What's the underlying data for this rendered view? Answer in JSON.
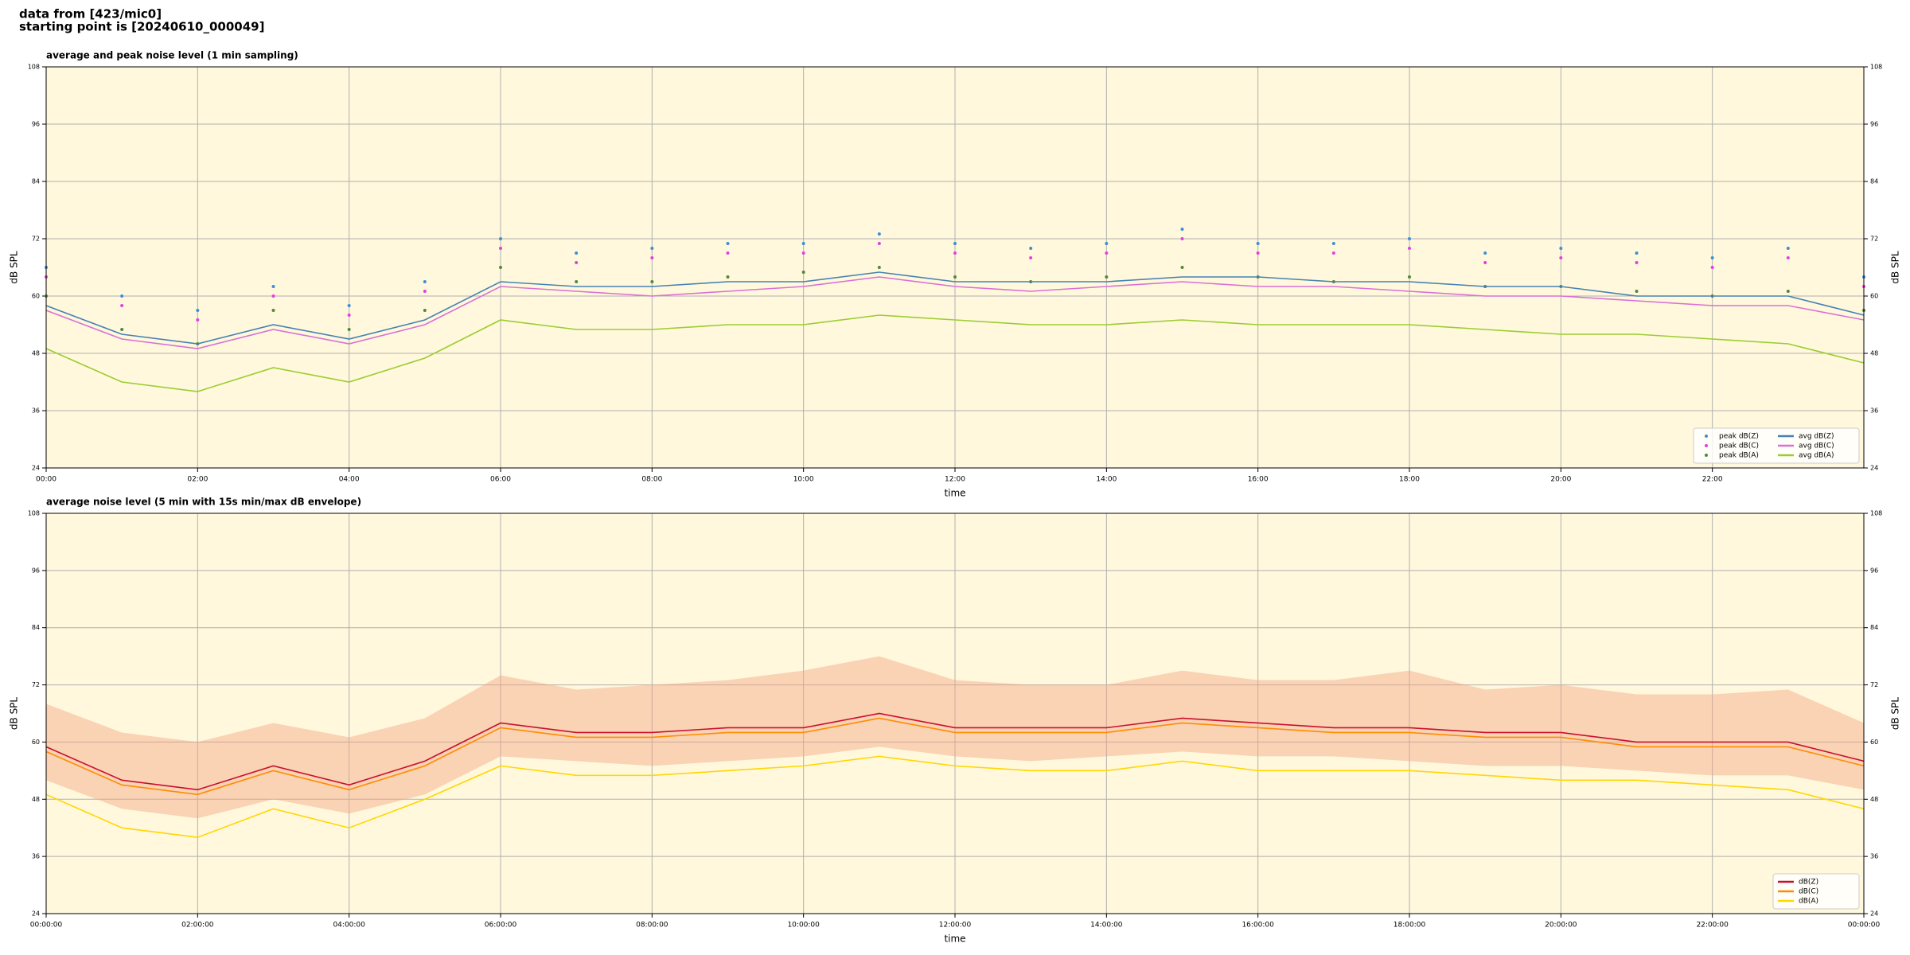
{
  "header": {
    "lines": [
      "data from [423/mic0]",
      "starting point is [20240610_000049]"
    ]
  },
  "chart_data": [
    {
      "type": "line",
      "title": "average and peak noise level (1 min sampling)",
      "xlabel": "time",
      "ylabel": "dB SPL",
      "xlim": [
        0,
        24
      ],
      "ylim": [
        24,
        108
      ],
      "xticks": [
        {
          "value": 0,
          "label": "00:00"
        },
        {
          "value": 2,
          "label": "02:00"
        },
        {
          "value": 4,
          "label": "04:00"
        },
        {
          "value": 6,
          "label": "06:00"
        },
        {
          "value": 8,
          "label": "08:00"
        },
        {
          "value": 10,
          "label": "10:00"
        },
        {
          "value": 12,
          "label": "12:00"
        },
        {
          "value": 14,
          "label": "14:00"
        },
        {
          "value": 16,
          "label": "16:00"
        },
        {
          "value": 18,
          "label": "18:00"
        },
        {
          "value": 20,
          "label": "20:00"
        },
        {
          "value": 22,
          "label": "22:00"
        }
      ],
      "yticks": [
        24,
        36,
        48,
        60,
        72,
        84,
        96,
        108
      ],
      "grid": true,
      "legend": "lower right",
      "background": "#fff8dc",
      "x": [
        0,
        1,
        2,
        3,
        4,
        5,
        6,
        7,
        8,
        9,
        10,
        11,
        12,
        13,
        14,
        15,
        16,
        17,
        18,
        19,
        20,
        21,
        22,
        23,
        24
      ],
      "series": [
        {
          "name": "peak dB(Z)",
          "style": "points",
          "color": "#3a8fd9",
          "values": [
            66,
            60,
            57,
            62,
            58,
            63,
            72,
            69,
            70,
            71,
            71,
            73,
            71,
            70,
            71,
            74,
            71,
            71,
            72,
            69,
            70,
            69,
            68,
            70,
            64
          ]
        },
        {
          "name": "peak dB(C)",
          "style": "points",
          "color": "#e040e0",
          "values": [
            64,
            58,
            55,
            60,
            56,
            61,
            70,
            67,
            68,
            69,
            69,
            71,
            69,
            68,
            69,
            72,
            69,
            69,
            70,
            67,
            68,
            67,
            66,
            68,
            62
          ]
        },
        {
          "name": "peak dB(A)",
          "style": "points",
          "color": "#4f8a3c",
          "values": [
            60,
            53,
            50,
            57,
            53,
            57,
            66,
            63,
            63,
            64,
            65,
            66,
            64,
            63,
            64,
            66,
            64,
            63,
            64,
            62,
            62,
            61,
            60,
            61,
            57
          ]
        },
        {
          "name": "avg dB(Z)",
          "style": "line",
          "color": "#4682b4",
          "values": [
            58,
            52,
            50,
            54,
            51,
            55,
            63,
            62,
            62,
            63,
            63,
            65,
            63,
            63,
            63,
            64,
            64,
            63,
            63,
            62,
            62,
            60,
            60,
            60,
            56
          ]
        },
        {
          "name": "avg dB(C)",
          "style": "line",
          "color": "#da70d6",
          "values": [
            57,
            51,
            49,
            53,
            50,
            54,
            62,
            61,
            60,
            61,
            62,
            64,
            62,
            61,
            62,
            63,
            62,
            62,
            61,
            60,
            60,
            59,
            58,
            58,
            55
          ]
        },
        {
          "name": "avg dB(A)",
          "style": "line",
          "color": "#9acd32",
          "values": [
            49,
            42,
            40,
            45,
            42,
            47,
            55,
            53,
            53,
            54,
            54,
            56,
            55,
            54,
            54,
            55,
            54,
            54,
            54,
            53,
            52,
            52,
            51,
            50,
            46
          ]
        }
      ]
    },
    {
      "type": "line",
      "title": "average noise level (5 min with 15s min/max dB envelope)",
      "xlabel": "time",
      "ylabel": "dB SPL",
      "xlim": [
        0,
        24
      ],
      "ylim": [
        24,
        108
      ],
      "xticks": [
        {
          "value": 0,
          "label": "00:00:00"
        },
        {
          "value": 2,
          "label": "02:00:00"
        },
        {
          "value": 4,
          "label": "04:00:00"
        },
        {
          "value": 6,
          "label": "06:00:00"
        },
        {
          "value": 8,
          "label": "08:00:00"
        },
        {
          "value": 10,
          "label": "10:00:00"
        },
        {
          "value": 12,
          "label": "12:00:00"
        },
        {
          "value": 14,
          "label": "14:00:00"
        },
        {
          "value": 16,
          "label": "16:00:00"
        },
        {
          "value": 18,
          "label": "18:00:00"
        },
        {
          "value": 20,
          "label": "20:00:00"
        },
        {
          "value": 22,
          "label": "22:00:00"
        },
        {
          "value": 24,
          "label": "00:00:00"
        }
      ],
      "yticks": [
        24,
        36,
        48,
        60,
        72,
        84,
        96,
        108
      ],
      "grid": true,
      "legend": "lower right",
      "background": "#fff8dc",
      "x": [
        0,
        1,
        2,
        3,
        4,
        5,
        6,
        7,
        8,
        9,
        10,
        11,
        12,
        13,
        14,
        15,
        16,
        17,
        18,
        19,
        20,
        21,
        22,
        23,
        24
      ],
      "envelope": {
        "color": "#f4a582",
        "lower": [
          52,
          46,
          44,
          48,
          45,
          49,
          57,
          56,
          55,
          56,
          57,
          59,
          57,
          56,
          57,
          58,
          57,
          57,
          56,
          55,
          55,
          54,
          53,
          53,
          50
        ],
        "upper": [
          68,
          62,
          60,
          64,
          61,
          65,
          74,
          71,
          72,
          73,
          75,
          78,
          73,
          72,
          72,
          75,
          73,
          73,
          75,
          71,
          72,
          70,
          70,
          71,
          64
        ]
      },
      "series": [
        {
          "name": "dB(Z)",
          "style": "line",
          "color": "#c8102e",
          "values": [
            59,
            52,
            50,
            55,
            51,
            56,
            64,
            62,
            62,
            63,
            63,
            66,
            63,
            63,
            63,
            65,
            64,
            63,
            63,
            62,
            62,
            60,
            60,
            60,
            56
          ]
        },
        {
          "name": "dB(C)",
          "style": "line",
          "color": "#ff8c00",
          "values": [
            58,
            51,
            49,
            54,
            50,
            55,
            63,
            61,
            61,
            62,
            62,
            65,
            62,
            62,
            62,
            64,
            63,
            62,
            62,
            61,
            61,
            59,
            59,
            59,
            55
          ]
        },
        {
          "name": "dB(A)",
          "style": "line",
          "color": "#ffd700",
          "values": [
            49,
            42,
            40,
            46,
            42,
            48,
            55,
            53,
            53,
            54,
            55,
            57,
            55,
            54,
            54,
            56,
            54,
            54,
            54,
            53,
            52,
            52,
            51,
            50,
            46
          ]
        }
      ]
    }
  ]
}
